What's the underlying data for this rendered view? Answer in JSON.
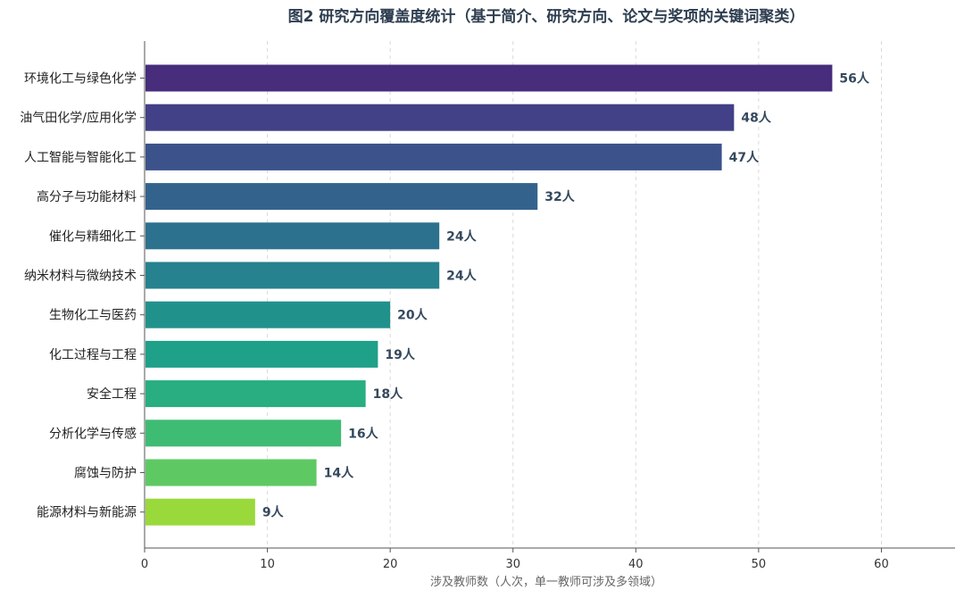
{
  "chart_data": {
    "type": "bar",
    "orientation": "horizontal",
    "title": "图2 研究方向覆盖度统计（基于简介、研究方向、论文与奖项的关键词聚类）",
    "xlabel": "涉及教师数（人次，单一教师可涉及多领域）",
    "ylabel": "",
    "xlim": [
      0,
      66
    ],
    "xticks": [
      0,
      10,
      20,
      30,
      40,
      50,
      60
    ],
    "grid": "vertical-dashed",
    "value_suffix": "人",
    "categories": [
      "环境化工与绿色化学",
      "油气田化学/应用化学",
      "人工智能与智能化工",
      "高分子与功能材料",
      "催化与精细化工",
      "纳米材料与微纳技术",
      "生物化工与医药",
      "化工过程与工程",
      "安全工程",
      "分析化学与传感",
      "腐蚀与防护",
      "能源材料与新能源"
    ],
    "values": [
      56,
      48,
      47,
      32,
      24,
      24,
      20,
      19,
      18,
      16,
      14,
      9
    ],
    "colors": [
      "#472d7b",
      "#424086",
      "#3b528b",
      "#33638d",
      "#2c728e",
      "#26828e",
      "#21918c",
      "#1fa088",
      "#28ae80",
      "#3fbc73",
      "#5ec962",
      "#9ad93b"
    ]
  }
}
